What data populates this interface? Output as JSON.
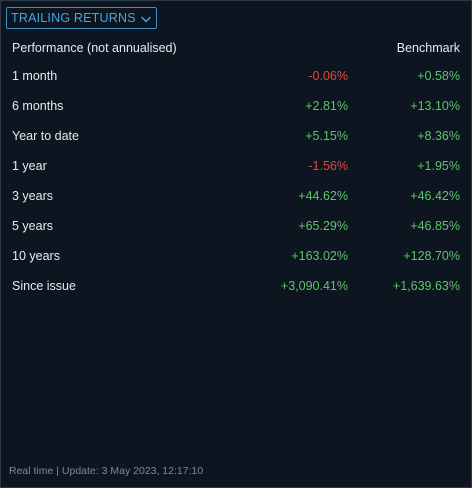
{
  "dropdown": {
    "label": "TRAILING RETURNS",
    "icon": "chevron-down-icon",
    "accent_color": "#49a6e0"
  },
  "header": {
    "left": "Performance (not annualised)",
    "right": "Benchmark"
  },
  "rows": [
    {
      "period": "1 month",
      "fund": "-0.06%",
      "benchmark": "+0.58%"
    },
    {
      "period": "6 months",
      "fund": "+2.81%",
      "benchmark": "+13.10%"
    },
    {
      "period": "Year to date",
      "fund": "+5.15%",
      "benchmark": "+8.36%"
    },
    {
      "period": "1 year",
      "fund": "-1.56%",
      "benchmark": "+1.95%"
    },
    {
      "period": "3 years",
      "fund": "+44.62%",
      "benchmark": "+46.42%"
    },
    {
      "period": "5 years",
      "fund": "+65.29%",
      "benchmark": "+46.85%"
    },
    {
      "period": "10 years",
      "fund": "+163.02%",
      "benchmark": "+128.70%"
    },
    {
      "period": "Since issue",
      "fund": "+3,090.41%",
      "benchmark": "+1,639.63%"
    }
  ],
  "footer": {
    "text": "Real time | Update: 3 May 2023, 12:17:10"
  },
  "colors": {
    "positive": "#5fc46a",
    "negative": "#e8453c",
    "background": "#0c1520"
  }
}
